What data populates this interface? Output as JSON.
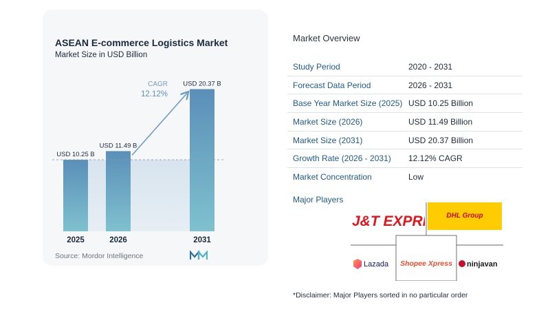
{
  "chart": {
    "title": "ASEAN E-commerce Logistics Market",
    "subtitle": "Market Size in USD Billion",
    "source": "Source: Mordor Intelligence",
    "cagr_label": "CAGR",
    "cagr_value": "12.12%"
  },
  "chart_data": {
    "type": "bar",
    "title": "ASEAN E-commerce Logistics Market",
    "subtitle": "Market Size in USD Billion",
    "categories": [
      "2025",
      "2026",
      "2031"
    ],
    "values": [
      10.25,
      11.49,
      20.37
    ],
    "data_labels": [
      "USD 10.25 B",
      "USD 11.49 B",
      "USD 20.37 B"
    ],
    "ylim": [
      0,
      21.5
    ],
    "annotation": {
      "label": "CAGR",
      "value": "12.12%"
    },
    "reference_line_value": 10.25,
    "grid": false,
    "colors": {
      "bar_top": "#5b8fb8",
      "bar_bottom": "#7fc1cf",
      "shade": "#dde8f0",
      "arrow": "#6d9cc4"
    }
  },
  "overview": {
    "title": "Market Overview",
    "rows": [
      {
        "label": "Study Period",
        "value": "2020 - 2031"
      },
      {
        "label": "Forecast Data Period",
        "value": "2026 - 2031"
      },
      {
        "label": "Base Year Market Size (2025)",
        "value": "USD 10.25 Billion"
      },
      {
        "label": "Market Size (2026)",
        "value": "USD 11.49 Billion"
      },
      {
        "label": "Market Size (2031)",
        "value": "USD 20.37 Billion"
      },
      {
        "label": "Growth Rate (2026 - 2031)",
        "value": "12.12% CAGR"
      },
      {
        "label": "Market Concentration",
        "value": "Low"
      }
    ]
  },
  "players": {
    "title": "Major Players",
    "logos": [
      "J&T EXPRESS",
      "DHL Group",
      "Lazada",
      "Shopee Xpress",
      "ninjavan"
    ],
    "disclaimer": "*Disclaimer: Major Players sorted in no particular order"
  }
}
